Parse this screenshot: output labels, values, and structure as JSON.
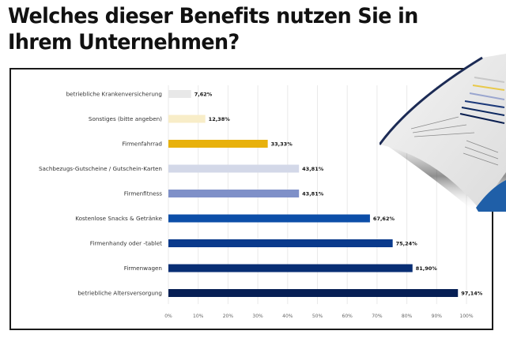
{
  "title": "Welches dieser Benefits nutzen Sie in Ihrem Unternehmen?",
  "title_lines": [
    "Welches dieser Benefits nutzen Sie in",
    "Ihrem Unternehmen?"
  ],
  "chart_data": {
    "type": "bar",
    "orientation": "horizontal",
    "title": "Welches dieser Benefits nutzen Sie in Ihrem Unternehmen?",
    "xlabel": "",
    "ylabel": "",
    "xlim": [
      0,
      100
    ],
    "grid": true,
    "legend": "none",
    "x_ticks": [
      "0%",
      "10%",
      "20%",
      "30%",
      "40%",
      "50%",
      "60%",
      "70%",
      "80%",
      "90%",
      "100%"
    ],
    "categories": [
      "betriebliche Krankenversicherung",
      "Sonstiges (bitte angeben)",
      "Firmenfahrrad",
      "Sachbezugs-Gutscheine / Gutschein-Karten",
      "Firmenfitness",
      "Kostenlose Snacks & Getränke",
      "Firmenhandy oder -tablet",
      "Firmenwagen",
      "betriebliche Altersversorgung"
    ],
    "values": [
      7.62,
      12.38,
      33.33,
      43.81,
      43.81,
      67.62,
      75.24,
      81.9,
      97.14
    ],
    "value_labels": [
      "7,62%",
      "12,38%",
      "33,33%",
      "43,81%",
      "43,81%",
      "67,62%",
      "75,24%",
      "81,90%",
      "97,14%"
    ],
    "colors": [
      "#e8e8e8",
      "#f8edc8",
      "#e8b10c",
      "#d3d8e8",
      "#7f90c8",
      "#0c4ea8",
      "#0a3a8c",
      "#082e74",
      "#061f55"
    ]
  }
}
